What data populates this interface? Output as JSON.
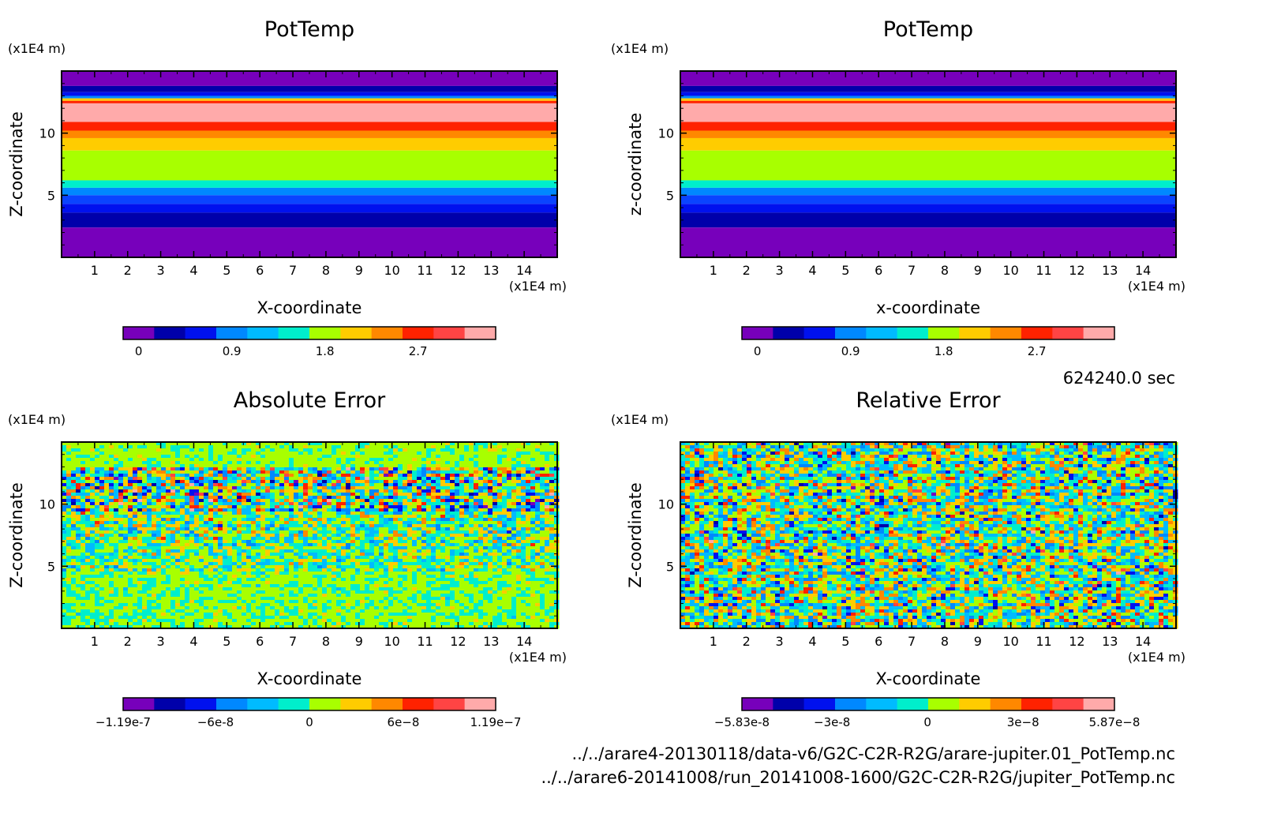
{
  "chart_data": [
    {
      "type": "heatmap",
      "title": "PotTemp",
      "xlabel": "X-coordinate",
      "ylabel": "Z-coordinate",
      "x_unit": "(x1E4 m)",
      "y_unit": "(x1E4 m)",
      "xlim": [
        0,
        15
      ],
      "ylim": [
        0,
        15
      ],
      "x_ticks": [
        "1",
        "2",
        "3",
        "4",
        "5",
        "6",
        "7",
        "8",
        "9",
        "10",
        "11",
        "12",
        "13",
        "14"
      ],
      "y_ticks": [
        "5",
        "10"
      ],
      "colorbar_ticks": [
        "0",
        "0.9",
        "1.8",
        "2.7"
      ],
      "field_kind": "layered",
      "bands": [
        {
          "z_top": 15.0,
          "color": "purple"
        },
        {
          "z_top": 13.8,
          "color": "darkblue"
        },
        {
          "z_top": 13.3,
          "color": "blue"
        },
        {
          "z_top": 13.0,
          "color": "lightblue"
        },
        {
          "z_top": 12.8,
          "color": "yellow"
        },
        {
          "z_top": 12.6,
          "color": "red"
        },
        {
          "z_top": 12.4,
          "color": "pink"
        },
        {
          "z_top": 10.9,
          "color": "red"
        },
        {
          "z_top": 10.2,
          "color": "orange"
        },
        {
          "z_top": 9.6,
          "color": "yellow"
        },
        {
          "z_top": 8.6,
          "color": "lime"
        },
        {
          "z_top": 6.2,
          "color": "cyan"
        },
        {
          "z_top": 5.6,
          "color": "lightblue"
        },
        {
          "z_top": 5.0,
          "color": "blue2"
        },
        {
          "z_top": 4.3,
          "color": "blue"
        },
        {
          "z_top": 3.6,
          "color": "darkblue"
        },
        {
          "z_top": 2.4,
          "color": "purple"
        }
      ]
    },
    {
      "type": "heatmap",
      "title": "PotTemp",
      "xlabel": "x-coordinate",
      "ylabel": "z-coordinate",
      "x_unit": "(x1E4 m)",
      "y_unit": "(x1E4 m)",
      "xlim": [
        0,
        15
      ],
      "ylim": [
        0,
        15
      ],
      "x_ticks": [
        "1",
        "2",
        "3",
        "4",
        "5",
        "6",
        "7",
        "8",
        "9",
        "10",
        "11",
        "12",
        "13",
        "14"
      ],
      "y_ticks": [
        "5",
        "10"
      ],
      "colorbar_ticks": [
        "0",
        "0.9",
        "1.8",
        "2.7"
      ],
      "field_kind": "layered",
      "bands": [
        {
          "z_top": 15.0,
          "color": "purple"
        },
        {
          "z_top": 13.8,
          "color": "darkblue"
        },
        {
          "z_top": 13.3,
          "color": "blue"
        },
        {
          "z_top": 13.0,
          "color": "lightblue"
        },
        {
          "z_top": 12.8,
          "color": "yellow"
        },
        {
          "z_top": 12.6,
          "color": "red"
        },
        {
          "z_top": 12.4,
          "color": "pink"
        },
        {
          "z_top": 10.9,
          "color": "red"
        },
        {
          "z_top": 10.2,
          "color": "orange"
        },
        {
          "z_top": 9.6,
          "color": "yellow"
        },
        {
          "z_top": 8.6,
          "color": "lime"
        },
        {
          "z_top": 6.2,
          "color": "cyan"
        },
        {
          "z_top": 5.6,
          "color": "lightblue"
        },
        {
          "z_top": 5.0,
          "color": "blue2"
        },
        {
          "z_top": 4.3,
          "color": "blue"
        },
        {
          "z_top": 3.6,
          "color": "darkblue"
        },
        {
          "z_top": 2.4,
          "color": "purple"
        }
      ]
    },
    {
      "type": "heatmap",
      "title": "Absolute Error",
      "xlabel": "X-coordinate",
      "ylabel": "Z-coordinate",
      "x_unit": "(x1E4 m)",
      "y_unit": "(x1E4 m)",
      "xlim": [
        0,
        15
      ],
      "ylim": [
        0,
        15
      ],
      "x_ticks": [
        "1",
        "2",
        "3",
        "4",
        "5",
        "6",
        "7",
        "8",
        "9",
        "10",
        "11",
        "12",
        "13",
        "14"
      ],
      "y_ticks": [
        "5",
        "10"
      ],
      "colorbar_ticks": [
        "-1.19e-7",
        "-6e-8",
        "0",
        "6e-8",
        "1.19e-7"
      ],
      "colorbar_range": [
        -1.19e-07,
        1.19e-07
      ],
      "field_kind": "noise-layered",
      "noise_profile": [
        {
          "z_top": 15.0,
          "spread": 0.12,
          "bias": 0.05
        },
        {
          "z_top": 13.0,
          "spread": 0.65,
          "bias": 0.0
        },
        {
          "z_top": 9.5,
          "spread": 0.38,
          "bias": 0.0
        },
        {
          "z_top": 6.5,
          "spread": 0.3,
          "bias": 0.0
        },
        {
          "z_top": 4.5,
          "spread": 0.14,
          "bias": 0.03
        }
      ]
    },
    {
      "type": "heatmap",
      "title": "Relative Error",
      "xlabel": "X-coordinate",
      "ylabel": "Z-coordinate",
      "x_unit": "(x1E4 m)",
      "y_unit": "(x1E4 m)",
      "xlim": [
        0,
        15
      ],
      "ylim": [
        0,
        15
      ],
      "x_ticks": [
        "1",
        "2",
        "3",
        "4",
        "5",
        "6",
        "7",
        "8",
        "9",
        "10",
        "11",
        "12",
        "13",
        "14"
      ],
      "y_ticks": [
        "5",
        "10"
      ],
      "colorbar_ticks": [
        "-5.83e-8",
        "-3e-8",
        "0",
        "3e-8",
        "5.87e-8"
      ],
      "colorbar_range": [
        -5.83e-08,
        5.87e-08
      ],
      "field_kind": "noise-layered",
      "noise_profile": [
        {
          "z_top": 15.0,
          "spread": 0.55,
          "bias": 0.0
        }
      ]
    }
  ],
  "colormap": {
    "purple": "#7700bb",
    "darkblue": "#0000aa",
    "blue": "#0011ee",
    "blue2": "#0a44ff",
    "lightblue": "#0088ff",
    "skyblue": "#00bbff",
    "cyan": "#00eecc",
    "lime": "#a8ff00",
    "yellow": "#ffcc00",
    "orange": "#ff8800",
    "red": "#ff2200",
    "red2": "#ff4444",
    "pink": "#ffaaaa"
  },
  "colorbar_order": [
    "purple",
    "darkblue",
    "blue",
    "lightblue",
    "skyblue",
    "cyan",
    "lime",
    "yellow",
    "orange",
    "red",
    "red2",
    "pink"
  ],
  "time_label": "624240.0 sec",
  "footer_lines": [
    "../../arare4-20130118/data-v6/G2C-C2R-R2G/arare-jupiter.01_PotTemp.nc",
    "../../arare6-20141008/run_20141008-1600/G2C-C2R-R2G/jupiter_PotTemp.nc"
  ]
}
